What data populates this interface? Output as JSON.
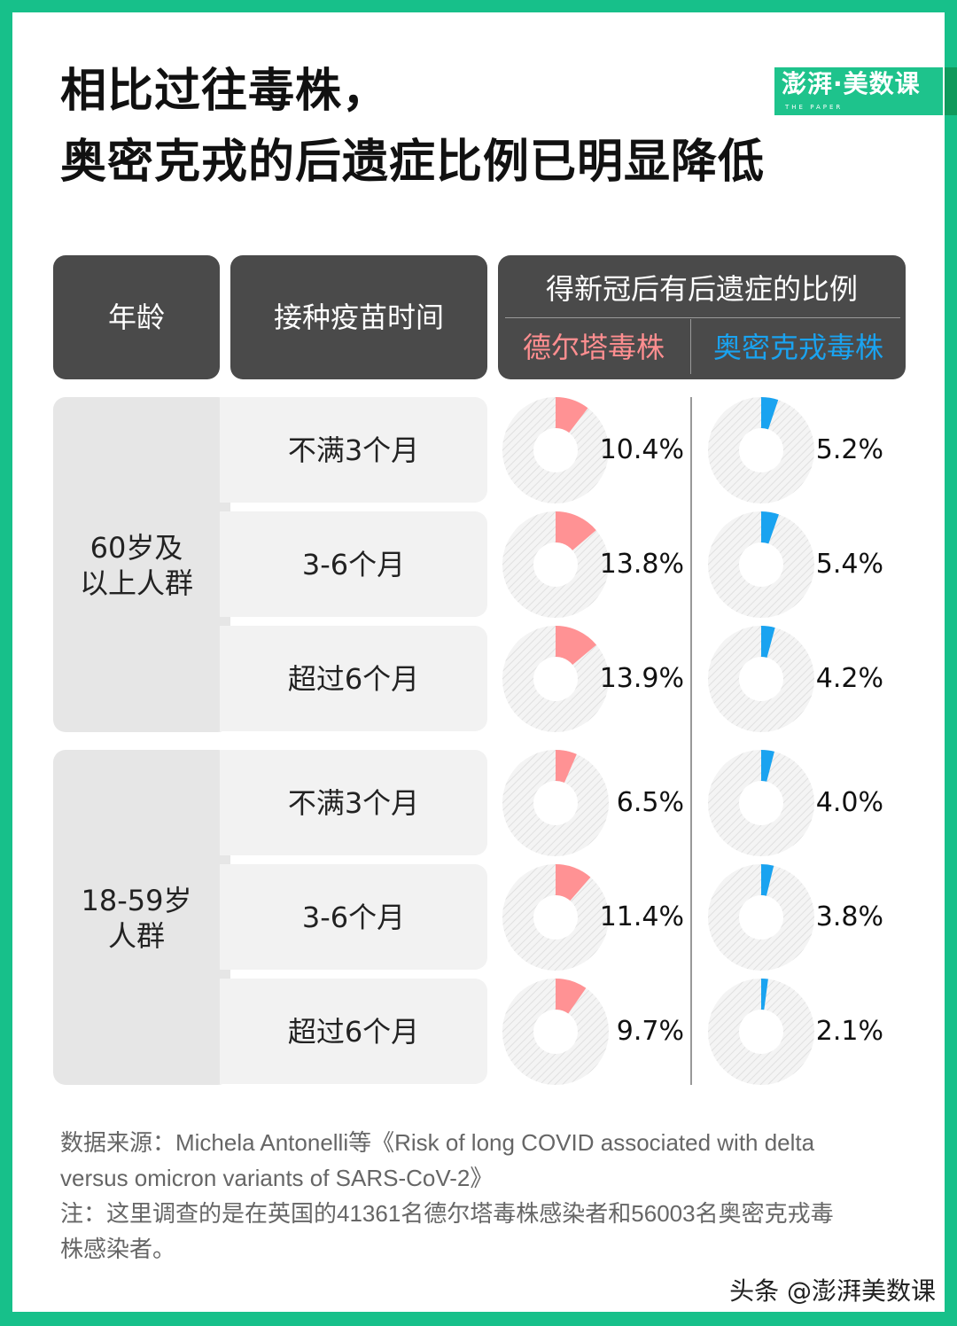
{
  "title": {
    "line1": "相比过往毒株，",
    "line2": "奥密克戎的后遗症比例已明显降低"
  },
  "logo": {
    "main": "澎湃·美数课",
    "sub": "THE PAPER"
  },
  "header": {
    "age": "年龄",
    "vaccine": "接种疫苗时间",
    "ratio": "得新冠后有后遗症的比例",
    "delta": "德尔塔毒株",
    "omicron": "奥密克戎毒株"
  },
  "colors": {
    "delta": "#ff9294",
    "omicron": "#1aa3f0",
    "border": "#17c08a",
    "header_bg": "#4a4a4a"
  },
  "groups": [
    {
      "age": [
        "60岁及",
        "以上人群"
      ],
      "rows": [
        {
          "vaccine": "不满3个月",
          "delta": "10.4%",
          "omicron": "5.2%"
        },
        {
          "vaccine": "3-6个月",
          "delta": "13.8%",
          "omicron": "5.4%"
        },
        {
          "vaccine": "超过6个月",
          "delta": "13.9%",
          "omicron": "4.2%"
        }
      ]
    },
    {
      "age": [
        "18-59岁",
        "人群"
      ],
      "rows": [
        {
          "vaccine": "不满3个月",
          "delta": "6.5%",
          "omicron": "4.0%"
        },
        {
          "vaccine": "3-6个月",
          "delta": "11.4%",
          "omicron": "3.8%"
        },
        {
          "vaccine": "超过6个月",
          "delta": "9.7%",
          "omicron": "2.1%"
        }
      ]
    }
  ],
  "chart_data": {
    "type": "pie",
    "variant": "donut",
    "series": [
      {
        "name": "德尔塔毒株",
        "values": [
          10.4,
          13.8,
          13.9,
          6.5,
          11.4,
          9.7
        ]
      },
      {
        "name": "奥密克戎毒株",
        "values": [
          5.2,
          5.4,
          4.2,
          4.0,
          3.8,
          2.1
        ]
      }
    ],
    "categories": [
      "60岁及以上人群 不满3个月",
      "60岁及以上人群 3-6个月",
      "60岁及以上人群 超过6个月",
      "18-59岁人群 不满3个月",
      "18-59岁人群 3-6个月",
      "18-59岁人群 超过6个月"
    ],
    "unit": "%"
  },
  "notes": {
    "line1": "数据来源：Michela Antonelli等《Risk of long COVID associated with delta",
    "line2": "versus omicron variants of SARS-CoV-2》",
    "line3": "注：这里调查的是在英国的41361名德尔塔毒株感染者和56003名奥密克戎毒",
    "line4": "株感染者。"
  },
  "watermark": "头条 @澎湃美数课"
}
